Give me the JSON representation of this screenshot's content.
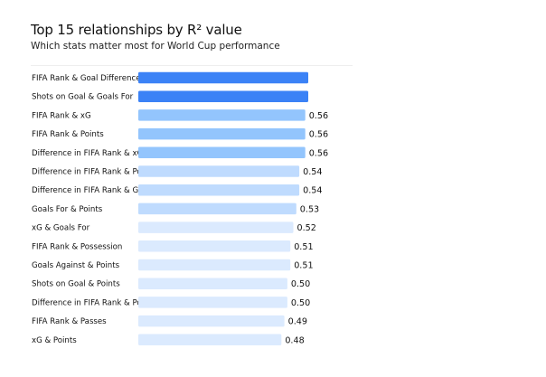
{
  "chart_data": {
    "type": "bar",
    "orientation": "horizontal",
    "title": "Top 15 relationships by R² value",
    "subtitle": "Which stats matter most for World Cup performance",
    "xlabel": "",
    "ylabel": "",
    "xlim": [
      0,
      0.6
    ],
    "grid": false,
    "legend": "none",
    "categories": [
      "FIFA Rank & Goal Difference",
      "Shots on Goal & Goals For",
      "FIFA Rank & xG",
      "FIFA Rank & Points",
      "Difference in FIFA Rank & xG",
      "Difference in FIFA Rank & Possession",
      "Difference in FIFA Rank & Goal Diff",
      "Goals For & Points",
      "xG & Goals For",
      "FIFA Rank & Possession",
      "Goals Against & Points",
      "Shots on Goal & Points",
      "Difference in FIFA Rank & Points",
      "FIFA Rank & Passes",
      "xG & Points"
    ],
    "values": [
      0.57,
      0.57,
      0.56,
      0.56,
      0.56,
      0.54,
      0.54,
      0.53,
      0.52,
      0.51,
      0.51,
      0.5,
      0.5,
      0.49,
      0.48
    ],
    "value_labels": [
      "",
      "",
      "0.56",
      "0.56",
      "0.56",
      "0.54",
      "0.54",
      "0.53",
      "0.52",
      "0.51",
      "0.51",
      "0.50",
      "0.50",
      "0.49",
      "0.48"
    ],
    "bar_colors": [
      "#3b82f6",
      "#3b82f6",
      "#93c5fd",
      "#93c5fd",
      "#93c5fd",
      "#bfdbfe",
      "#bfdbfe",
      "#bfdbfe",
      "#dbeafe",
      "#dbeafe",
      "#dbeafe",
      "#dbeafe",
      "#dbeafe",
      "#dbeafe",
      "#dbeafe"
    ]
  }
}
